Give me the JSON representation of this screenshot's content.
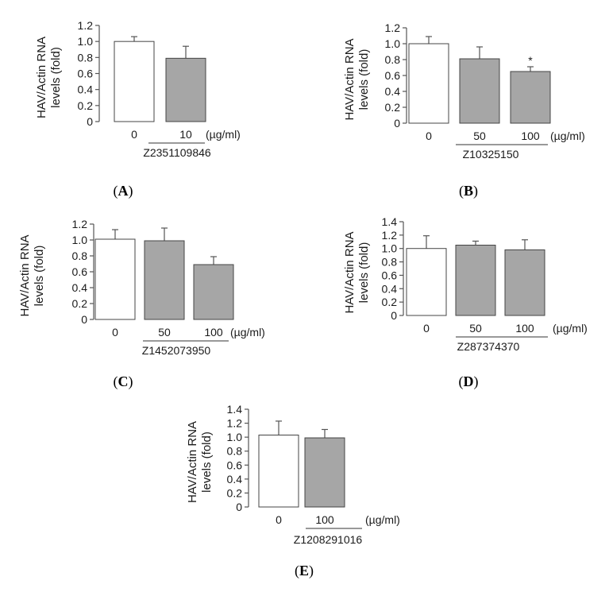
{
  "panels": [
    {
      "letter": "A",
      "ylabel_line1": "HAV/Actin RNA",
      "ylabel_line2": "levels (fold)",
      "compound": "Z2351109846",
      "unit": "(µg/ml)"
    },
    {
      "letter": "B",
      "ylabel_line1": "HAV/Actin RNA",
      "ylabel_line2": "levels (fold)",
      "compound": "Z10325150",
      "unit": "(µg/ml)"
    },
    {
      "letter": "C",
      "ylabel_line1": "HAV/Actin RNA",
      "ylabel_line2": "levels (fold)",
      "compound": "Z1452073950",
      "unit": "(µg/ml)"
    },
    {
      "letter": "D",
      "ylabel_line1": "HAV/Actin RNA",
      "ylabel_line2": "levels (fold)",
      "compound": "Z287374370",
      "unit": "(µg/ml)"
    },
    {
      "letter": "E",
      "ylabel_line1": "HAV/Actin RNA",
      "ylabel_line2": "levels (fold)",
      "compound": "Z1208291016",
      "unit": "(µg/ml)"
    }
  ],
  "chart_data": [
    {
      "type": "bar",
      "panel": "A",
      "categories": [
        "0",
        "10"
      ],
      "values": [
        1.0,
        0.79
      ],
      "error": [
        0.06,
        0.15
      ],
      "bar_colors": [
        "#ffffff",
        "#a6a6a6"
      ],
      "significance": [
        "",
        ""
      ],
      "ylim": [
        0,
        1.2
      ],
      "yticks": [
        "0",
        "0.2",
        "0.4",
        "0.6",
        "0.8",
        "1.0",
        "1.2"
      ],
      "ylabel": "HAV/Actin RNA levels (fold)",
      "xlabel": "Z2351109846",
      "grid": false
    },
    {
      "type": "bar",
      "panel": "B",
      "categories": [
        "0",
        "50",
        "100"
      ],
      "values": [
        1.0,
        0.81,
        0.65
      ],
      "error": [
        0.09,
        0.15,
        0.06
      ],
      "bar_colors": [
        "#ffffff",
        "#a6a6a6",
        "#a6a6a6"
      ],
      "significance": [
        "",
        "",
        "*"
      ],
      "ylim": [
        0,
        1.2
      ],
      "yticks": [
        "0",
        "0.2",
        "0.4",
        "0.6",
        "0.8",
        "1.0",
        "1.2"
      ],
      "ylabel": "HAV/Actin RNA levels (fold)",
      "xlabel": "Z10325150",
      "grid": false
    },
    {
      "type": "bar",
      "panel": "C",
      "categories": [
        "0",
        "50",
        "100"
      ],
      "values": [
        1.01,
        0.99,
        0.69
      ],
      "error": [
        0.12,
        0.16,
        0.1
      ],
      "bar_colors": [
        "#ffffff",
        "#a6a6a6",
        "#a6a6a6"
      ],
      "significance": [
        "",
        "",
        ""
      ],
      "ylim": [
        0,
        1.2
      ],
      "yticks": [
        "0",
        "0.2",
        "0.4",
        "0.6",
        "0.8",
        "1.0",
        "1.2"
      ],
      "ylabel": "HAV/Actin RNA levels (fold)",
      "xlabel": "Z1452073950",
      "grid": false
    },
    {
      "type": "bar",
      "panel": "D",
      "categories": [
        "0",
        "50",
        "100"
      ],
      "values": [
        1.0,
        1.05,
        0.98
      ],
      "error": [
        0.19,
        0.06,
        0.15
      ],
      "bar_colors": [
        "#ffffff",
        "#a6a6a6",
        "#a6a6a6"
      ],
      "significance": [
        "",
        "",
        ""
      ],
      "ylim": [
        0,
        1.4
      ],
      "yticks": [
        "0",
        "0.2",
        "0.4",
        "0.6",
        "0.8",
        "1.0",
        "1.2",
        "1.4"
      ],
      "ylabel": "HAV/Actin RNA levels (fold)",
      "xlabel": "Z287374370",
      "grid": false
    },
    {
      "type": "bar",
      "panel": "E",
      "categories": [
        "0",
        "100"
      ],
      "values": [
        1.03,
        0.99
      ],
      "error": [
        0.2,
        0.12
      ],
      "bar_colors": [
        "#ffffff",
        "#a6a6a6"
      ],
      "significance": [
        "",
        ""
      ],
      "ylim": [
        0,
        1.4
      ],
      "yticks": [
        "0",
        "0.2",
        "0.4",
        "0.6",
        "0.8",
        "1.0",
        "1.2",
        "1.4"
      ],
      "ylabel": "HAV/Actin RNA levels (fold)",
      "xlabel": "Z1208291016",
      "grid": false
    }
  ]
}
